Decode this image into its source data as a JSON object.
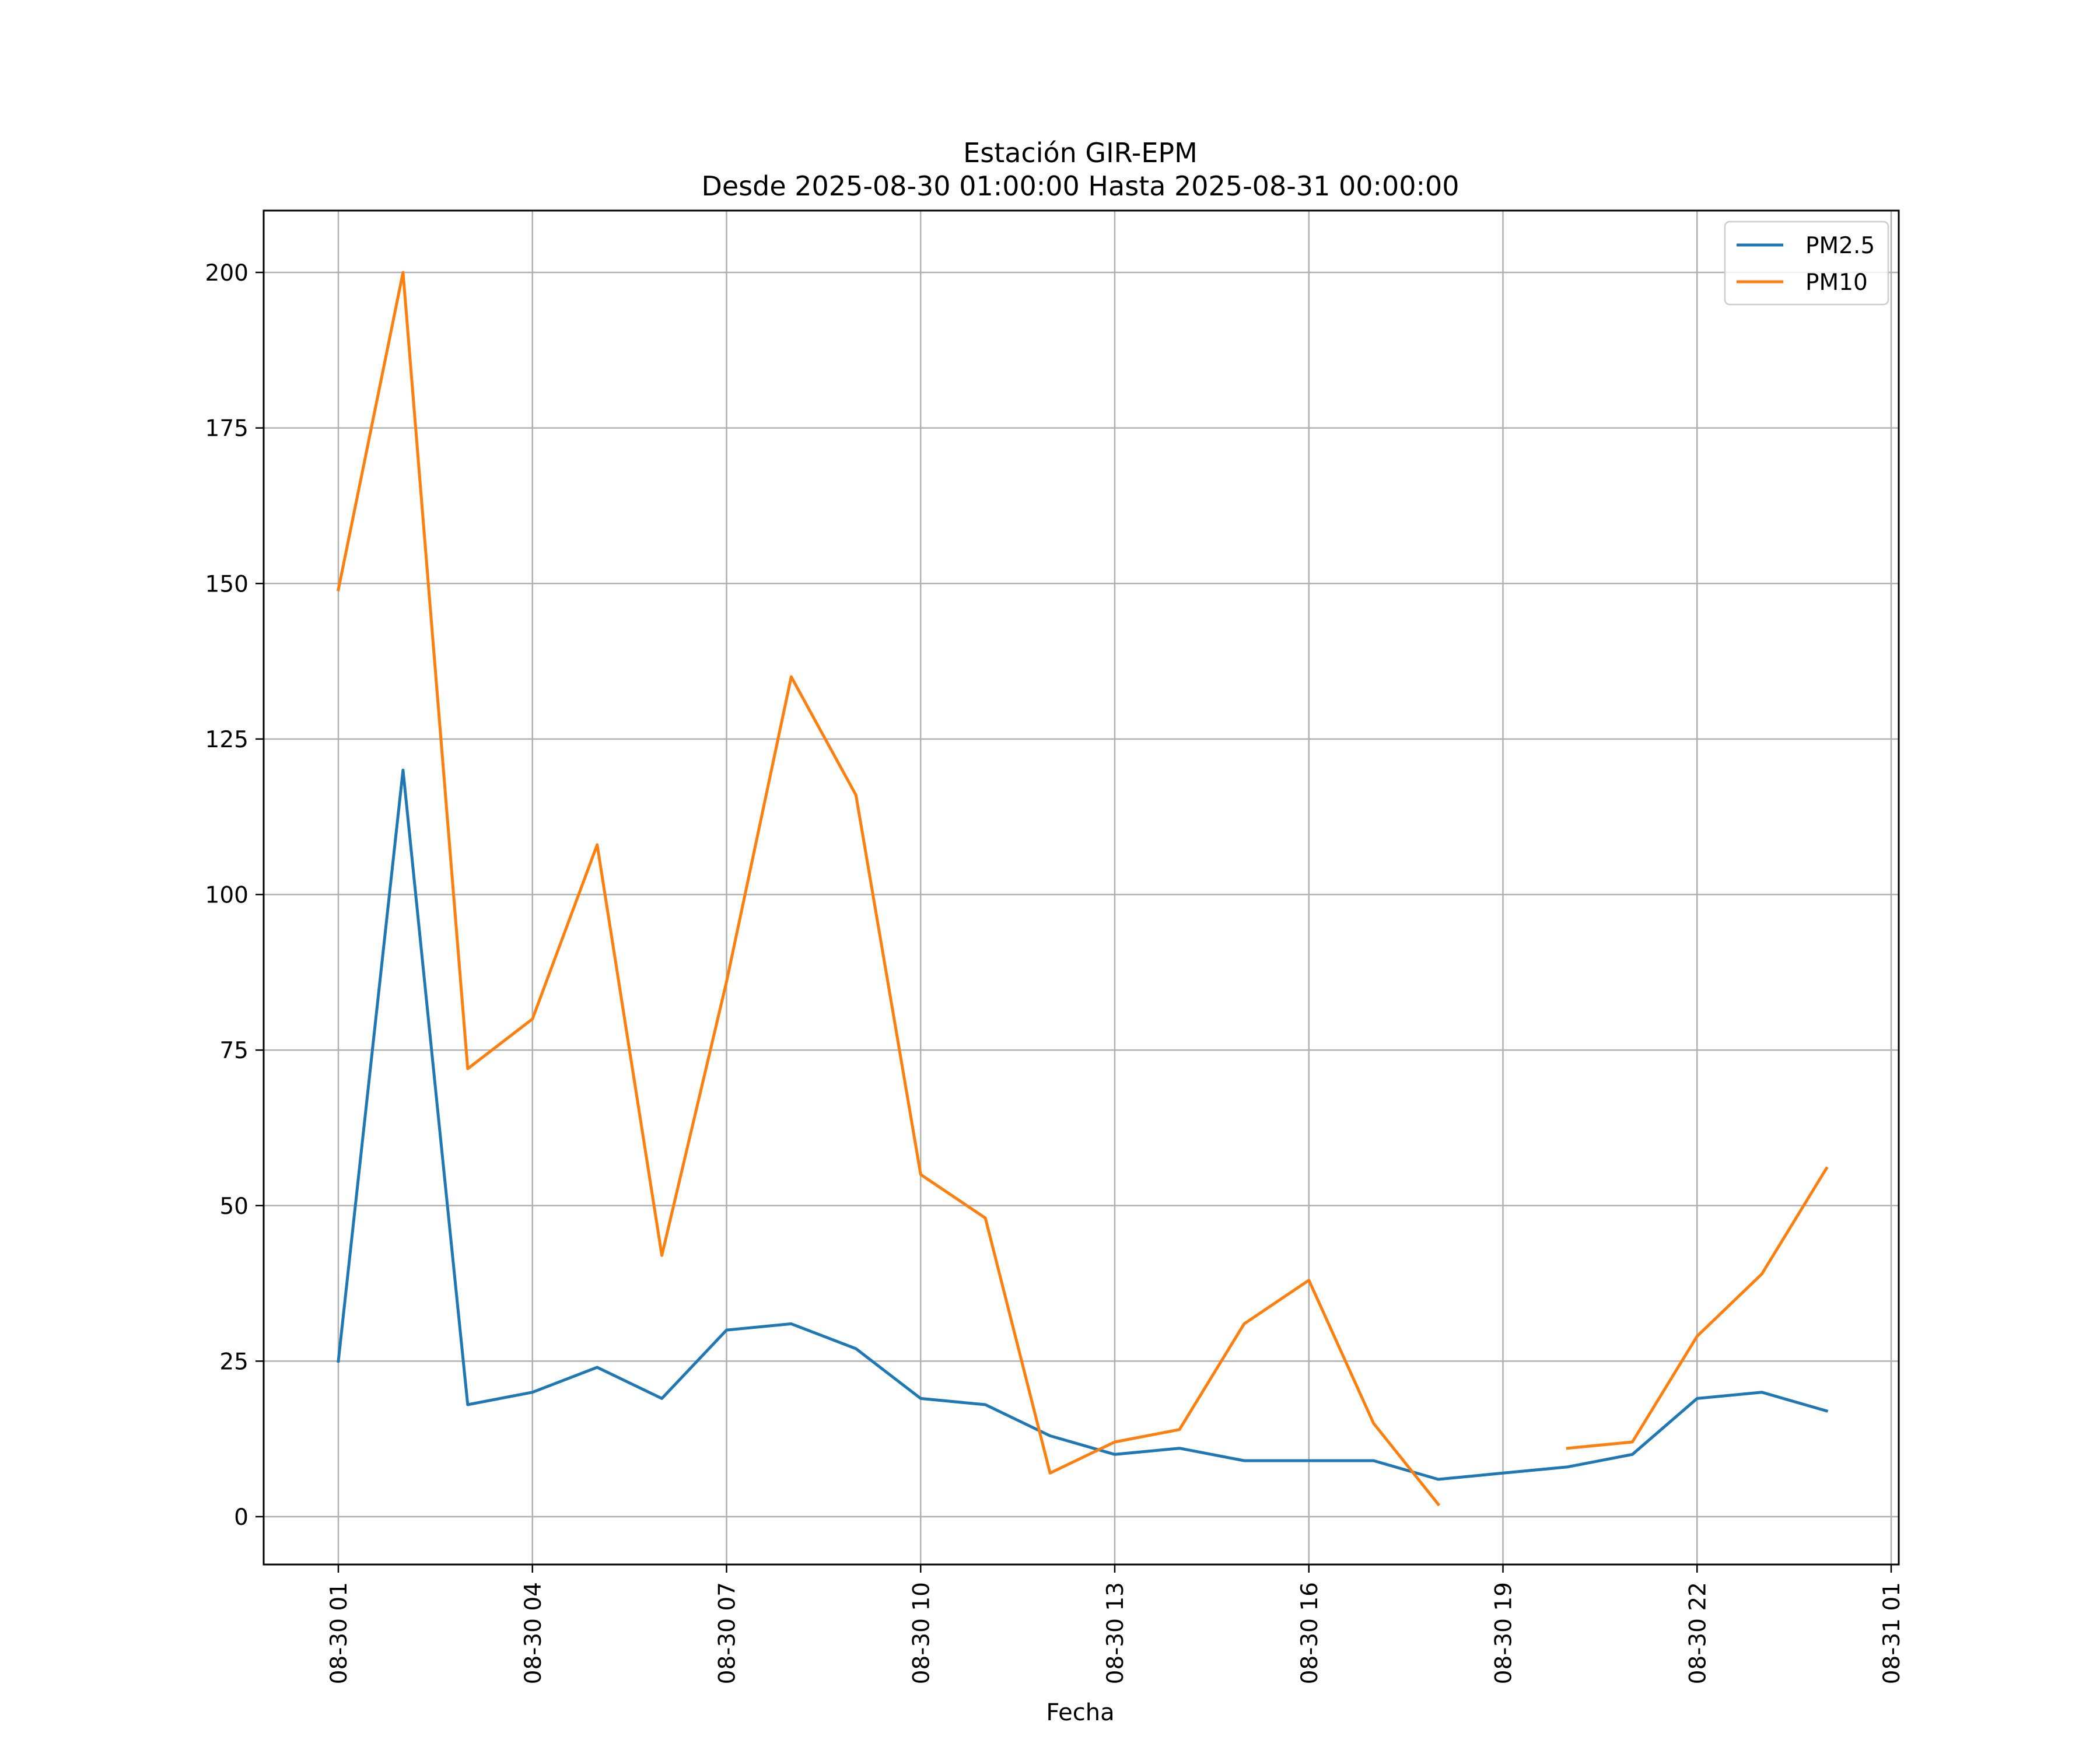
{
  "chart_data": {
    "type": "line",
    "title": "Estación GIR-EPM",
    "subtitle": "Desde 2025-08-30 01:00:00 Hasta 2025-08-31 00:00:00",
    "xlabel": "Fecha",
    "ylabel": "",
    "x_ticks": [
      "08-30 01",
      "08-30 04",
      "08-30 07",
      "08-30 10",
      "08-30 13",
      "08-30 16",
      "08-30 19",
      "08-30 22",
      "08-31 01"
    ],
    "y_ticks": [
      "0",
      "25",
      "50",
      "75",
      "100",
      "125",
      "150",
      "175",
      "200"
    ],
    "x": [
      "08-30 01",
      "08-30 02",
      "08-30 03",
      "08-30 04",
      "08-30 05",
      "08-30 06",
      "08-30 07",
      "08-30 08",
      "08-30 09",
      "08-30 10",
      "08-30 11",
      "08-30 12",
      "08-30 13",
      "08-30 14",
      "08-30 15",
      "08-30 16",
      "08-30 17",
      "08-30 18",
      "08-30 19",
      "08-30 20",
      "08-30 21",
      "08-30 22",
      "08-30 23",
      "08-31 00"
    ],
    "xlim": [
      "08-30 00",
      "08-31 01"
    ],
    "ylim": [
      -8,
      210
    ],
    "grid": true,
    "legend_position": "top-right",
    "series": [
      {
        "name": "PM2.5",
        "color": "#1f77b4",
        "values": [
          25,
          120,
          18,
          20,
          24,
          19,
          30,
          31,
          27,
          19,
          18,
          13,
          10,
          11,
          9,
          9,
          9,
          6,
          7,
          8,
          10,
          19,
          20,
          17
        ]
      },
      {
        "name": "PM10",
        "color": "#ff7f0e",
        "values": [
          149,
          200,
          72,
          80,
          108,
          42,
          86,
          135,
          116,
          55,
          48,
          7,
          12,
          14,
          31,
          38,
          15,
          2,
          null,
          11,
          12,
          29,
          39,
          56
        ]
      }
    ]
  }
}
